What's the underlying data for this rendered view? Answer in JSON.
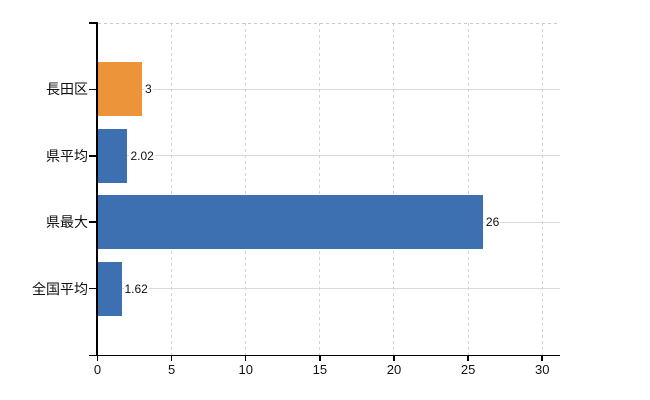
{
  "window": {
    "background": "#ffffff"
  },
  "chart_data": {
    "type": "bar",
    "orientation": "horizontal",
    "title": "",
    "xlabel": "",
    "ylabel": "",
    "categories": [
      "長田区",
      "県平均",
      "県最大",
      "全国平均"
    ],
    "values": [
      3,
      2.02,
      26,
      1.62
    ],
    "value_labels": [
      "3",
      "2.02",
      "26",
      "1.62"
    ],
    "bar_colors": [
      "#EB9439",
      "#3C70B0",
      "#3C70B0",
      "#3C70B0"
    ],
    "x_ticks": [
      0,
      5,
      10,
      15,
      20,
      25,
      30
    ],
    "x_tick_labels": [
      "0",
      "5",
      "10",
      "15",
      "20",
      "25",
      "30"
    ],
    "xlim": [
      0,
      31.2
    ],
    "grid": true,
    "legend": false,
    "gridline_color": "#d7dbd7",
    "axis_color": "#000000",
    "text_color": "#111111",
    "accent_orange": "#EB9439",
    "accent_blue": "#3C70B0"
  }
}
